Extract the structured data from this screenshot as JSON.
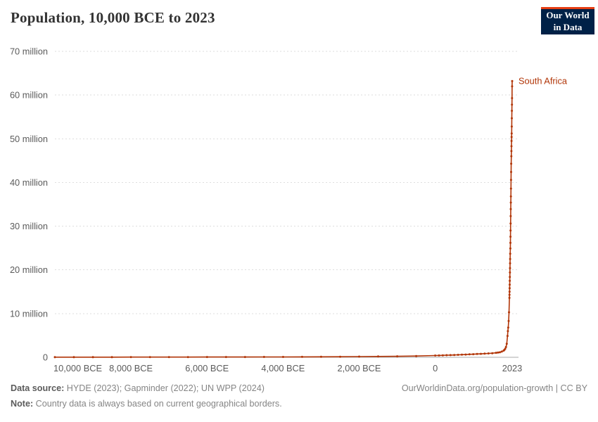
{
  "header": {
    "title": "Population, 10,000 BCE to 2023"
  },
  "logo": {
    "line1": "Our World",
    "line2": "in Data"
  },
  "chart_data": {
    "type": "line",
    "title": "Population, 10,000 BCE to 2023",
    "series_label": "South Africa",
    "line_color": "#b13507",
    "grid": "horizontal-dashed",
    "legend_position": "end-of-line",
    "xlabel": "",
    "ylabel": "",
    "xlim": [
      -10000,
      2023
    ],
    "ylim": [
      0,
      70000000
    ],
    "yticks": [
      {
        "value": 0,
        "label": "0"
      },
      {
        "value": 10000000,
        "label": "10 million"
      },
      {
        "value": 20000000,
        "label": "20 million"
      },
      {
        "value": 30000000,
        "label": "30 million"
      },
      {
        "value": 40000000,
        "label": "40 million"
      },
      {
        "value": 50000000,
        "label": "50 million"
      },
      {
        "value": 60000000,
        "label": "60 million"
      },
      {
        "value": 70000000,
        "label": "70 million"
      }
    ],
    "xticks": [
      {
        "value": -10000,
        "label": "10,000 BCE"
      },
      {
        "value": -8000,
        "label": "8,000 BCE"
      },
      {
        "value": -6000,
        "label": "6,000 BCE"
      },
      {
        "value": -4000,
        "label": "4,000 BCE"
      },
      {
        "value": -2000,
        "label": "2,000 BCE"
      },
      {
        "value": 0,
        "label": "0"
      },
      {
        "value": 2023,
        "label": "2023"
      }
    ],
    "points": [
      [
        -10000,
        30000
      ],
      [
        -9500,
        32000
      ],
      [
        -9000,
        35000
      ],
      [
        -8500,
        38000
      ],
      [
        -8000,
        41000
      ],
      [
        -7500,
        45000
      ],
      [
        -7000,
        49000
      ],
      [
        -6500,
        53000
      ],
      [
        -6000,
        58000
      ],
      [
        -5500,
        64000
      ],
      [
        -5000,
        70000
      ],
      [
        -4500,
        78000
      ],
      [
        -4000,
        87000
      ],
      [
        -3500,
        98000
      ],
      [
        -3000,
        112000
      ],
      [
        -2500,
        130000
      ],
      [
        -2000,
        154000
      ],
      [
        -1500,
        186000
      ],
      [
        -1000,
        228000
      ],
      [
        -500,
        296000
      ],
      [
        0,
        400000
      ],
      [
        100,
        425000
      ],
      [
        200,
        450000
      ],
      [
        300,
        477000
      ],
      [
        400,
        505000
      ],
      [
        500,
        535000
      ],
      [
        600,
        566000
      ],
      [
        700,
        599000
      ],
      [
        800,
        634000
      ],
      [
        900,
        671000
      ],
      [
        1000,
        710000
      ],
      [
        1100,
        751000
      ],
      [
        1200,
        794000
      ],
      [
        1300,
        840000
      ],
      [
        1400,
        888000
      ],
      [
        1500,
        939000
      ],
      [
        1600,
        1035000
      ],
      [
        1650,
        1090000
      ],
      [
        1700,
        1150000
      ],
      [
        1750,
        1300000
      ],
      [
        1800,
        1530000
      ],
      [
        1820,
        1700000
      ],
      [
        1840,
        1950000
      ],
      [
        1860,
        2350000
      ],
      [
        1880,
        3100000
      ],
      [
        1900,
        4900000
      ],
      [
        1910,
        6000000
      ],
      [
        1920,
        6800000
      ],
      [
        1930,
        8300000
      ],
      [
        1940,
        10300000
      ],
      [
        1950,
        13600000
      ],
      [
        1952,
        14300000
      ],
      [
        1954,
        15000000
      ],
      [
        1956,
        15800000
      ],
      [
        1958,
        16600000
      ],
      [
        1960,
        17500000
      ],
      [
        1962,
        18400000
      ],
      [
        1964,
        19400000
      ],
      [
        1966,
        20400000
      ],
      [
        1968,
        21500000
      ],
      [
        1970,
        22500000
      ],
      [
        1972,
        23700000
      ],
      [
        1974,
        24900000
      ],
      [
        1976,
        26200000
      ],
      [
        1978,
        27600000
      ],
      [
        1980,
        29000000
      ],
      [
        1982,
        30600000
      ],
      [
        1984,
        32300000
      ],
      [
        1986,
        33900000
      ],
      [
        1988,
        35400000
      ],
      [
        1990,
        36800000
      ],
      [
        1992,
        38600000
      ],
      [
        1994,
        40600000
      ],
      [
        1996,
        42400000
      ],
      [
        1998,
        44300000
      ],
      [
        2000,
        46000000
      ],
      [
        2002,
        47200000
      ],
      [
        2004,
        48300000
      ],
      [
        2006,
        49500000
      ],
      [
        2008,
        50400000
      ],
      [
        2010,
        51200000
      ],
      [
        2012,
        52800000
      ],
      [
        2014,
        54700000
      ],
      [
        2016,
        56400000
      ],
      [
        2018,
        57800000
      ],
      [
        2020,
        59300000
      ],
      [
        2022,
        62000000
      ],
      [
        2023,
        63200000
      ]
    ]
  },
  "footer": {
    "datasource_label": "Data source:",
    "datasource_text": " HYDE (2023); Gapminder (2022); UN WPP (2024)",
    "note_label": "Note:",
    "note_text": " Country data is always based on current geographical borders.",
    "right_text": "OurWorldinData.org/population-growth | CC BY"
  }
}
